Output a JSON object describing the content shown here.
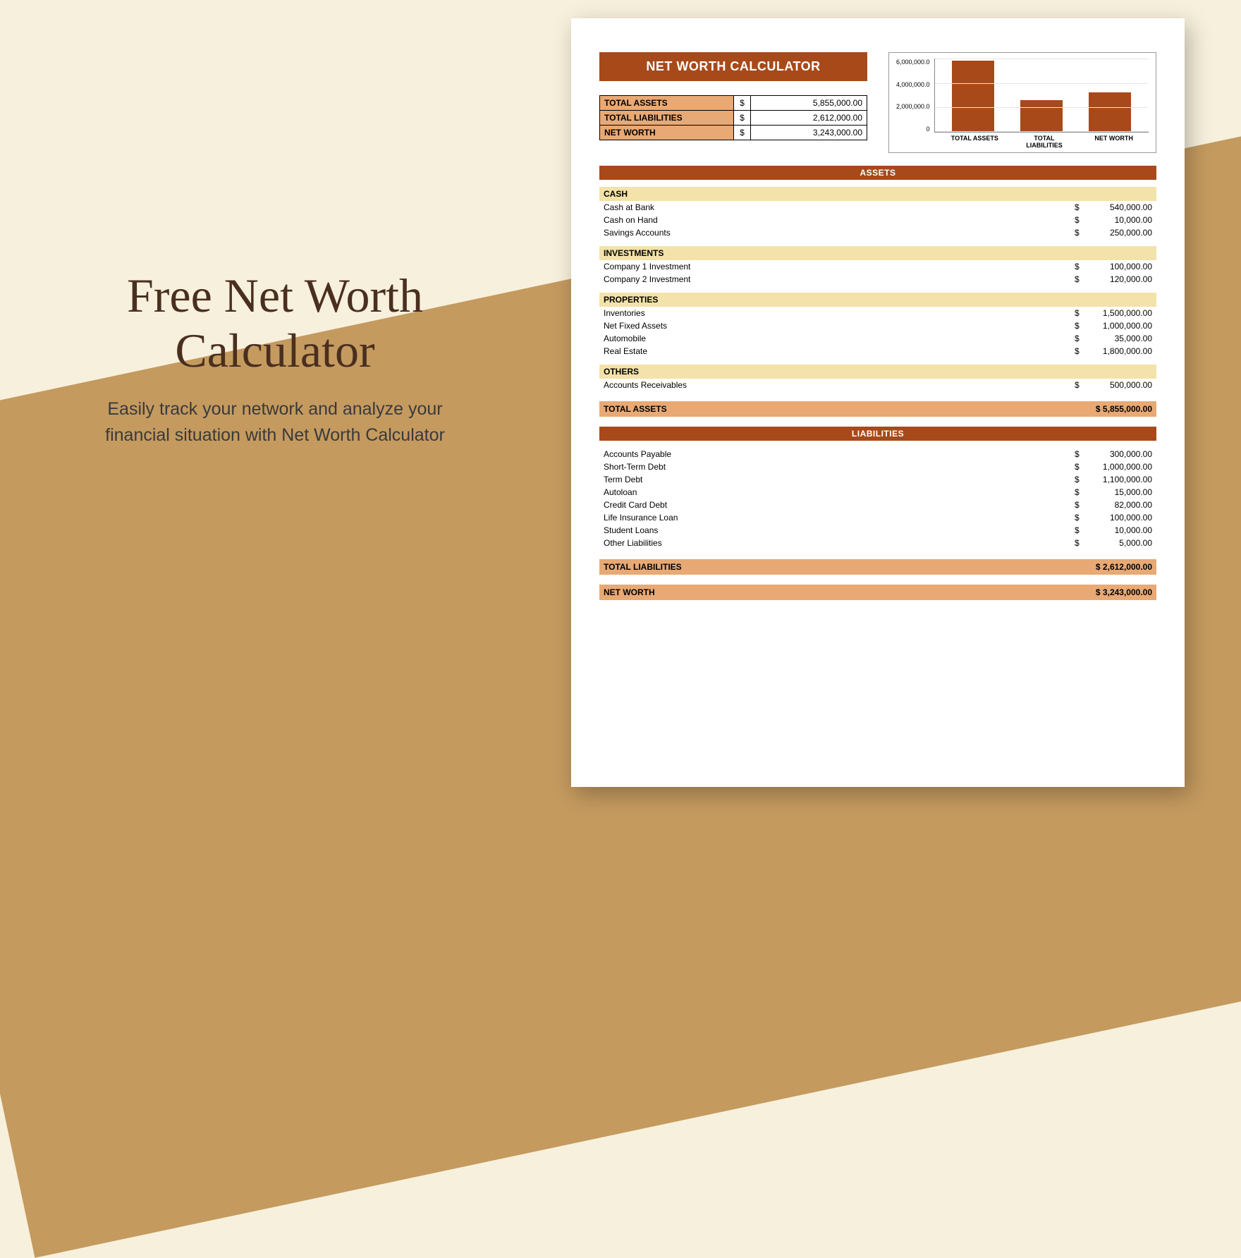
{
  "promo": {
    "title_line1": "Free Net Worth",
    "title_line2": "Calculator",
    "subtitle": "Easily track your network and analyze your financial situation with Net Worth Calculator"
  },
  "colors": {
    "bg_cream": "#f7f0dc",
    "bg_tan": "#c49a5f",
    "brown_dark": "#a8491a",
    "orange_mid": "#e8a974",
    "yellow_light": "#f3e2a9",
    "text_dark": "#4a2f1f"
  },
  "doc": {
    "title": "NET WORTH CALCULATOR",
    "summary": {
      "rows": [
        {
          "label": "TOTAL ASSETS",
          "currency": "$",
          "value": "5,855,000.00"
        },
        {
          "label": "TOTAL LIABILITIES",
          "currency": "$",
          "value": "2,612,000.00"
        },
        {
          "label": "NET WORTH",
          "currency": "$",
          "value": "3,243,000.00"
        }
      ]
    },
    "chart": {
      "type": "bar",
      "ymax": 6000000,
      "ytick_step": 2000000,
      "yticks": [
        "6,000,000.0",
        "4,000,000.0",
        "2,000,000.0",
        "0"
      ],
      "bar_color": "#a8491a",
      "bars": [
        {
          "label": "TOTAL ASSETS",
          "value": 5855000
        },
        {
          "label": "TOTAL LIABILITIES",
          "value": 2612000
        },
        {
          "label": "NET WORTH",
          "value": 3243000
        }
      ]
    },
    "assets_header": "ASSETS",
    "asset_groups": [
      {
        "name": "CASH",
        "items": [
          {
            "label": "Cash at Bank",
            "value": "540,000.00"
          },
          {
            "label": "Cash on Hand",
            "value": "10,000.00"
          },
          {
            "label": "Savings Accounts",
            "value": "250,000.00"
          }
        ]
      },
      {
        "name": "INVESTMENTS",
        "items": [
          {
            "label": "Company 1 Investment",
            "value": "100,000.00"
          },
          {
            "label": "Company 2 Investment",
            "value": "120,000.00"
          }
        ]
      },
      {
        "name": "PROPERTIES",
        "items": [
          {
            "label": "Inventories",
            "value": "1,500,000.00"
          },
          {
            "label": "Net Fixed Assets",
            "value": "1,000,000.00"
          },
          {
            "label": "Automobile",
            "value": "35,000.00"
          },
          {
            "label": "Real Estate",
            "value": "1,800,000.00"
          }
        ]
      },
      {
        "name": "OTHERS",
        "items": [
          {
            "label": "Accounts Receivables",
            "value": "500,000.00"
          }
        ]
      }
    ],
    "total_assets": {
      "label": "TOTAL ASSETS",
      "value": "$ 5,855,000.00"
    },
    "liabilities_header": "LIABILITIES",
    "liability_items": [
      {
        "label": "Accounts Payable",
        "value": "300,000.00"
      },
      {
        "label": "Short-Term Debt",
        "value": "1,000,000.00"
      },
      {
        "label": "Term Debt",
        "value": "1,100,000.00"
      },
      {
        "label": "Autoloan",
        "value": "15,000.00"
      },
      {
        "label": "Credit Card Debt",
        "value": "82,000.00"
      },
      {
        "label": "Life Insurance Loan",
        "value": "100,000.00"
      },
      {
        "label": "Student Loans",
        "value": "10,000.00"
      },
      {
        "label": "Other Liabilities",
        "value": "5,000.00"
      }
    ],
    "total_liabilities": {
      "label": "TOTAL LIABILITIES",
      "value": "$ 2,612,000.00"
    },
    "net_worth": {
      "label": "NET WORTH",
      "value": "$ 3,243,000.00"
    }
  }
}
